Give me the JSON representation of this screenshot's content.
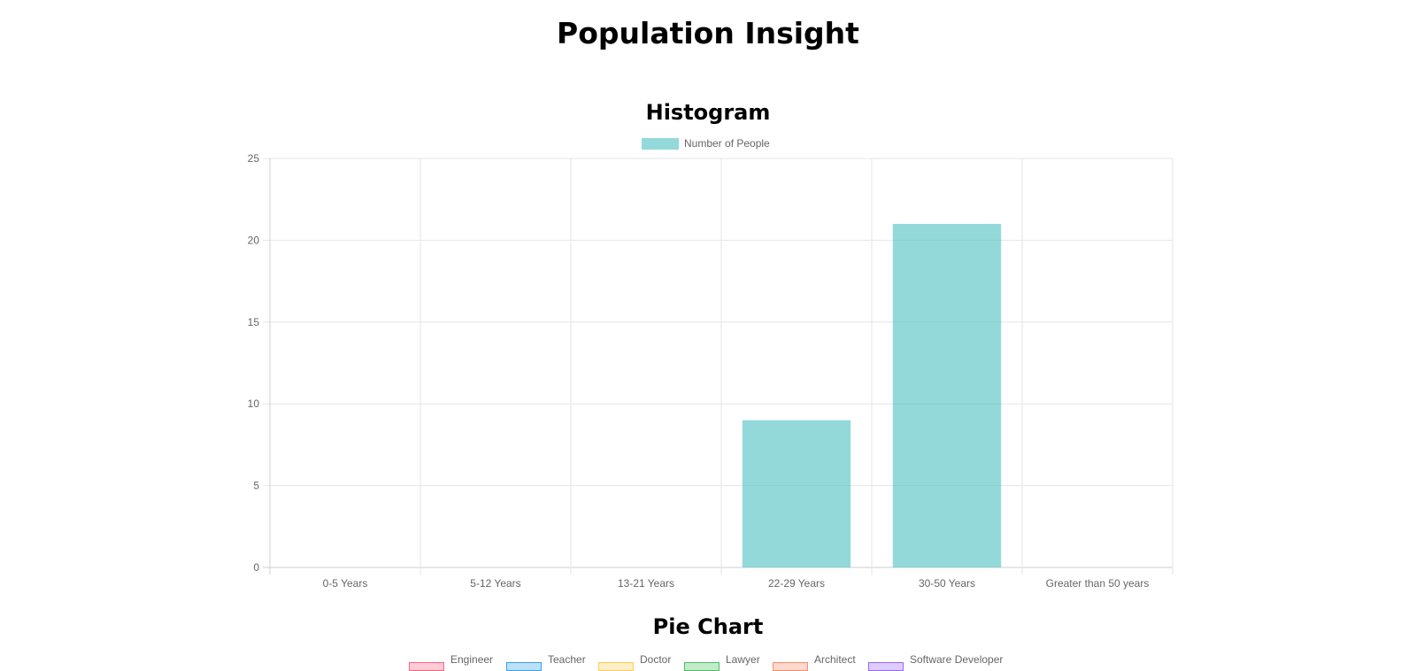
{
  "page": {
    "title": "Population Insight"
  },
  "histogram": {
    "title": "Histogram",
    "legend_label": "Number of People"
  },
  "pie": {
    "title": "Pie Chart",
    "legend": [
      {
        "label": "Engineer",
        "color": "#ff6384"
      },
      {
        "label": "Teacher",
        "color": "#36a2eb"
      },
      {
        "label": "Doctor",
        "color": "#ffcd56"
      },
      {
        "label": "Lawyer",
        "color": "#4bc063"
      },
      {
        "label": "Architect",
        "color": "#ff8c6a"
      },
      {
        "label": "Software Developer",
        "color": "#9966ff"
      }
    ]
  },
  "chart_data": [
    {
      "type": "bar",
      "title": "Histogram",
      "categories": [
        "0-5 Years",
        "5-12 Years",
        "13-21 Years",
        "22-29 Years",
        "30-50 Years",
        "Greater than 50 years"
      ],
      "series": [
        {
          "name": "Number of People",
          "values": [
            0,
            0,
            0,
            9,
            21,
            0
          ],
          "color": "#4bc0c0"
        }
      ],
      "ylim": [
        0,
        25
      ],
      "yticks": [
        0,
        5,
        10,
        15,
        20,
        25
      ],
      "grid": true,
      "legend": "top-center"
    }
  ]
}
